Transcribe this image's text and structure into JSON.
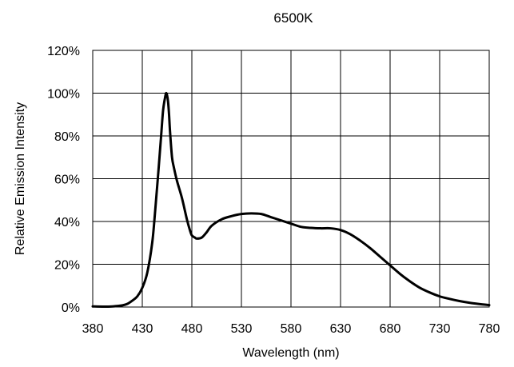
{
  "chart_data": {
    "type": "line",
    "title": "6500K",
    "xlabel": "Wavelength (nm)",
    "ylabel": "Relative Emission Intensity",
    "xlim": [
      380,
      780
    ],
    "ylim": [
      0,
      120
    ],
    "x_ticks": [
      380,
      430,
      480,
      530,
      580,
      630,
      680,
      730,
      780
    ],
    "y_ticks": [
      0,
      20,
      40,
      60,
      80,
      100,
      120
    ],
    "x_tick_labels": [
      "380",
      "430",
      "480",
      "530",
      "580",
      "630",
      "680",
      "730",
      "780"
    ],
    "y_tick_labels": [
      "0%",
      "20%",
      "40%",
      "60%",
      "80%",
      "100%",
      "120%"
    ],
    "grid": true,
    "legend": "none",
    "line_color": "#000000",
    "series": [
      {
        "x": [
          380,
          390,
          400,
          410,
          415,
          420,
          425,
          430,
          435,
          440,
          443,
          446,
          449,
          451,
          453,
          454,
          455,
          456,
          457,
          458,
          460,
          462,
          465,
          470,
          475,
          478,
          480,
          483,
          485,
          490,
          495,
          500,
          510,
          520,
          530,
          540,
          550,
          560,
          570,
          580,
          590,
          600,
          610,
          620,
          630,
          640,
          650,
          660,
          670,
          680,
          690,
          700,
          710,
          720,
          730,
          740,
          750,
          760,
          770,
          780
        ],
        "y": [
          0.3,
          0.2,
          0.3,
          0.8,
          1.5,
          3,
          5,
          9,
          16,
          30,
          45,
          62,
          80,
          92,
          98,
          100,
          99,
          96,
          90,
          82,
          70,
          65,
          59,
          51,
          41,
          36,
          33.5,
          32.5,
          32,
          32.5,
          35,
          38,
          41,
          42.5,
          43.5,
          43.8,
          43.5,
          42,
          40.5,
          39,
          37.5,
          37,
          36.8,
          36.8,
          36,
          34,
          31,
          27.5,
          23.5,
          19.5,
          15.5,
          12,
          9,
          6.8,
          5,
          3.8,
          2.8,
          2,
          1.4,
          0.9
        ]
      }
    ]
  }
}
